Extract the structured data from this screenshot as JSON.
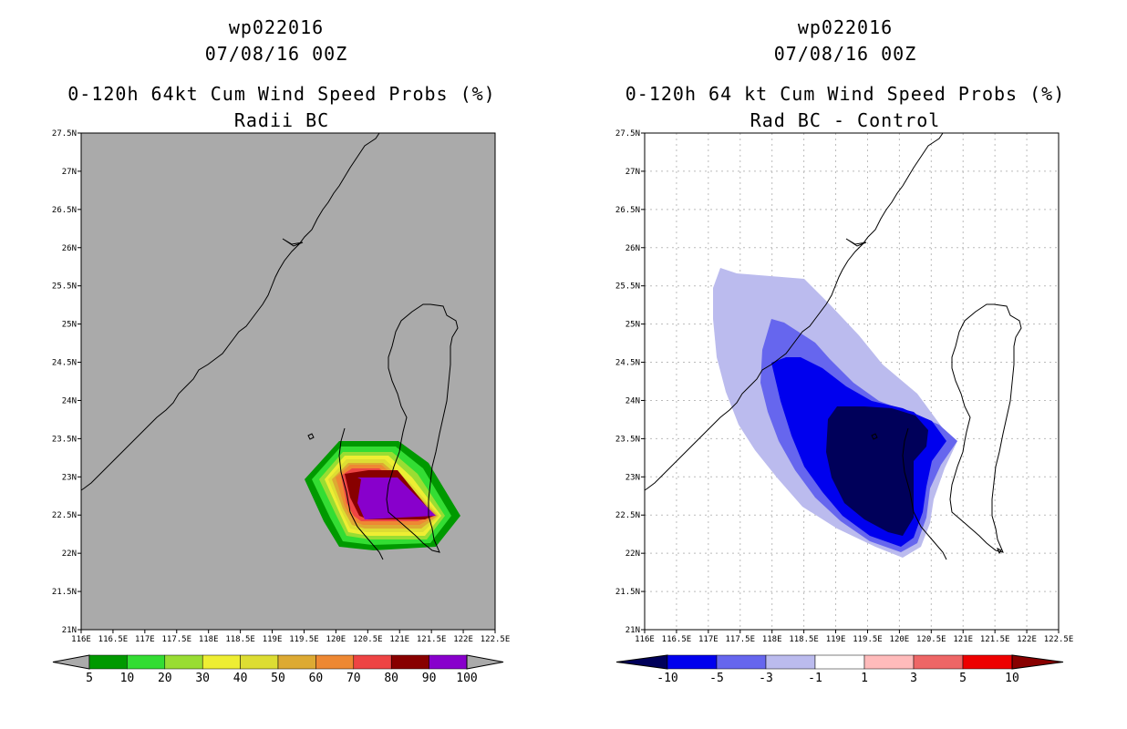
{
  "left": {
    "title_line1": "wp022016",
    "title_line2": "07/08/16 00Z",
    "title_line3": "0-120h 64kt Cum Wind Speed Probs (%)",
    "title_line4": "Radii BC",
    "colorbar_labels": [
      "5",
      "10",
      "20",
      "30",
      "40",
      "50",
      "60",
      "70",
      "80",
      "90",
      "100"
    ],
    "colorbar_colors": [
      "#009900",
      "#33dd33",
      "#99dd33",
      "#eeee33",
      "#dddd33",
      "#ddaa33",
      "#ee8833",
      "#ee4444",
      "#880000",
      "#8800cc"
    ]
  },
  "right": {
    "title_line1": "wp022016",
    "title_line2": "07/08/16 00Z",
    "title_line3": "0-120h 64 kt Cum Wind Speed Probs (%)",
    "title_line4": "Rad BC - Control",
    "colorbar_labels": [
      "-10",
      "-5",
      "-3",
      "-1",
      "1",
      "3",
      "5",
      "10"
    ],
    "colorbar_colors": [
      "#00005a",
      "#0000ee",
      "#6666ee",
      "#bbbbee",
      "#ffffff",
      "#ffbbbb",
      "#ee6666",
      "#ee0000",
      "#880000"
    ]
  },
  "axes": {
    "lat_labels": [
      "27.5N",
      "27N",
      "26.5N",
      "26N",
      "25.5N",
      "25N",
      "24.5N",
      "24N",
      "23.5N",
      "23N",
      "22.5N",
      "22N",
      "21.5N",
      "21N"
    ],
    "lon_labels": [
      "116E",
      "116.5E",
      "117E",
      "117.5E",
      "118E",
      "118.5E",
      "119E",
      "119.5E",
      "120E",
      "120.5E",
      "121E",
      "121.5E",
      "122E",
      "122.5E"
    ]
  }
}
